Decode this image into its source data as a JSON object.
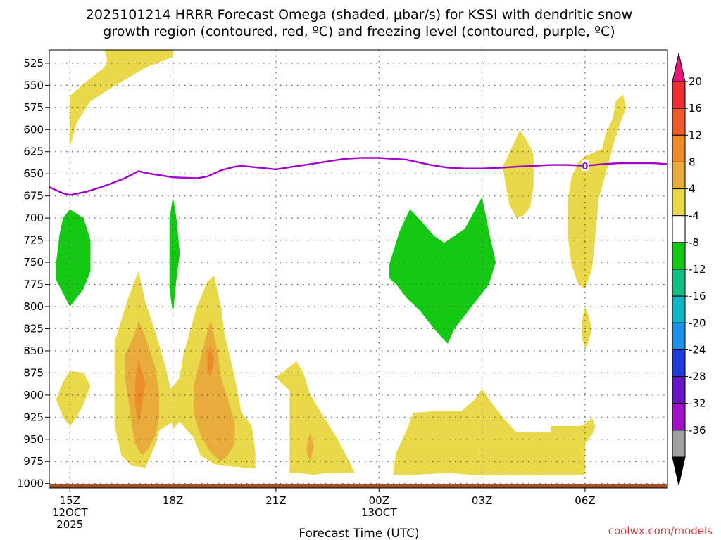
{
  "chart_data": {
    "type": "heatmap",
    "title_lines": [
      "2025101214 HRRR Forecast Omega (shaded, μbar/s) for KSSI with dendritic snow",
      "growth region (contoured, red, ºC) and freezing level (contoured, purple, ºC)"
    ],
    "xlabel": "Forecast Time (UTC)",
    "ylabel": "",
    "x_unit": "hours after 12Z 12 OCT 2025",
    "xlim": [
      14.4,
      32.4
    ],
    "y_scale": "pressure (hPa), inverted",
    "ylim": [
      1005,
      510
    ],
    "y_ticks": [
      525,
      550,
      575,
      600,
      625,
      650,
      675,
      700,
      725,
      750,
      775,
      800,
      825,
      850,
      875,
      900,
      925,
      950,
      975,
      1000
    ],
    "x_ticks": [
      {
        "x": 15,
        "lines": [
          "15Z",
          "12OCT",
          "2025"
        ]
      },
      {
        "x": 18,
        "lines": [
          "18Z"
        ]
      },
      {
        "x": 21,
        "lines": [
          "21Z"
        ]
      },
      {
        "x": 24,
        "lines": [
          "00Z",
          "13OCT"
        ]
      },
      {
        "x": 27,
        "lines": [
          "03Z"
        ]
      },
      {
        "x": 30,
        "lines": [
          "06Z"
        ]
      }
    ],
    "grid": true,
    "colorbar": {
      "labels": [
        "20",
        "16",
        "12",
        "8",
        "4",
        "-4",
        "-8",
        "-12",
        "-16",
        "-20",
        "-24",
        "-28",
        "-32",
        "-36"
      ],
      "colors": [
        "#e8157a",
        "#f03030",
        "#f05a28",
        "#ef8c2a",
        "#e8ac3c",
        "#e8d84a",
        "#ffffff",
        "#14c814",
        "#10c080",
        "#10b4c8",
        "#1e90e8",
        "#1e3cdc",
        "#6a14c8",
        "#a010c8",
        "#a0a0a0",
        "#000000"
      ]
    },
    "omega_regions": [
      {
        "level": "4 to 8",
        "color": "#e8d84a",
        "points": [
          [
            15.0,
            620
          ],
          [
            15.0,
            562
          ],
          [
            15.5,
            545
          ],
          [
            16.0,
            530
          ],
          [
            16.2,
            510
          ],
          [
            18.0,
            510
          ],
          [
            18.0,
            518
          ],
          [
            17.2,
            530
          ],
          [
            16.2,
            553
          ],
          [
            15.6,
            568
          ],
          [
            15.2,
            592
          ]
        ]
      },
      {
        "level": "4 to 8",
        "color": "#e8d84a",
        "points": [
          [
            16.0,
            510
          ],
          [
            16.2,
            510
          ],
          [
            16.1,
            522
          ]
        ]
      },
      {
        "level": "4 to 8",
        "color": "#e8d84a",
        "points": [
          [
            14.6,
            905
          ],
          [
            14.8,
            885
          ],
          [
            15.0,
            873
          ],
          [
            15.4,
            875
          ],
          [
            15.6,
            890
          ],
          [
            15.4,
            910
          ],
          [
            15.2,
            925
          ],
          [
            15.0,
            935
          ],
          [
            14.8,
            925
          ]
        ]
      },
      {
        "level": "4 to 8",
        "color": "#e8d84a",
        "points": [
          [
            16.3,
            840
          ],
          [
            16.7,
            790
          ],
          [
            17.0,
            760
          ],
          [
            17.2,
            795
          ],
          [
            17.5,
            830
          ],
          [
            17.8,
            870
          ],
          [
            18.0,
            905
          ],
          [
            18.0,
            930
          ],
          [
            17.6,
            940
          ],
          [
            17.5,
            955
          ],
          [
            17.2,
            982
          ],
          [
            16.8,
            980
          ],
          [
            16.5,
            968
          ],
          [
            16.3,
            935
          ]
        ]
      },
      {
        "level": "4 to 8",
        "color": "#e8d84a",
        "points": [
          [
            17.8,
            900
          ],
          [
            18.2,
            880
          ],
          [
            18.3,
            855
          ],
          [
            18.7,
            800
          ],
          [
            19.0,
            772
          ],
          [
            19.2,
            765
          ],
          [
            19.4,
            800
          ],
          [
            19.5,
            830
          ],
          [
            19.8,
            880
          ],
          [
            20.0,
            920
          ],
          [
            20.3,
            935
          ],
          [
            20.4,
            965
          ],
          [
            20.4,
            983
          ],
          [
            19.5,
            980
          ],
          [
            19.2,
            978
          ],
          [
            18.8,
            968
          ],
          [
            18.6,
            948
          ],
          [
            18.2,
            930
          ],
          [
            18.0,
            938
          ]
        ]
      },
      {
        "level": "4 to 8",
        "color": "#e8d84a",
        "points": [
          [
            21.0,
            880
          ],
          [
            21.6,
            862
          ],
          [
            21.8,
            875
          ],
          [
            22.0,
            900
          ],
          [
            22.4,
            925
          ],
          [
            22.8,
            950
          ],
          [
            23.0,
            965
          ],
          [
            23.3,
            988
          ],
          [
            22.5,
            988
          ],
          [
            22.1,
            990
          ],
          [
            21.6,
            988
          ],
          [
            21.4,
            988
          ],
          [
            21.4,
            945
          ],
          [
            21.4,
            895
          ]
        ]
      },
      {
        "level": "4 to 8",
        "color": "#e8d84a",
        "points": [
          [
            24.4,
            990
          ],
          [
            24.5,
            965
          ],
          [
            24.8,
            940
          ],
          [
            25.0,
            920
          ],
          [
            25.7,
            918
          ],
          [
            26.4,
            918
          ],
          [
            26.8,
            905
          ],
          [
            27.0,
            893
          ],
          [
            27.3,
            910
          ],
          [
            27.6,
            925
          ],
          [
            28.0,
            942
          ],
          [
            29.0,
            942
          ],
          [
            29.0,
            935
          ],
          [
            29.9,
            935
          ],
          [
            30.2,
            926
          ],
          [
            30.3,
            935
          ],
          [
            30.2,
            945
          ],
          [
            30.0,
            955
          ],
          [
            30.0,
            990
          ],
          [
            26.7,
            990
          ],
          [
            26.0,
            988
          ],
          [
            25.0,
            990
          ]
        ]
      },
      {
        "level": "4 to 8",
        "color": "#e8d84a",
        "points": [
          [
            27.6,
            642
          ],
          [
            27.9,
            618
          ],
          [
            28.1,
            601
          ],
          [
            28.3,
            612
          ],
          [
            28.5,
            628
          ],
          [
            28.5,
            665
          ],
          [
            28.4,
            688
          ],
          [
            28.2,
            697
          ],
          [
            28.0,
            700
          ],
          [
            27.8,
            685
          ],
          [
            27.7,
            665
          ]
        ]
      },
      {
        "level": "4 to 8",
        "color": "#e8d84a",
        "points": [
          [
            29.5,
            720
          ],
          [
            29.5,
            680
          ],
          [
            29.6,
            655
          ],
          [
            29.8,
            637
          ],
          [
            30.0,
            630
          ],
          [
            30.5,
            622
          ],
          [
            30.6,
            605
          ],
          [
            30.8,
            588
          ],
          [
            30.9,
            568
          ],
          [
            31.1,
            560
          ],
          [
            31.2,
            575
          ],
          [
            31.0,
            595
          ],
          [
            30.8,
            620
          ],
          [
            30.6,
            650
          ],
          [
            30.4,
            678
          ],
          [
            30.3,
            720
          ],
          [
            30.2,
            758
          ],
          [
            30.0,
            780
          ],
          [
            29.8,
            775
          ],
          [
            29.6,
            752
          ]
        ]
      },
      {
        "level": "4 to 8",
        "color": "#e8d84a",
        "points": [
          [
            29.9,
            818
          ],
          [
            30.0,
            800
          ],
          [
            30.1,
            810
          ],
          [
            30.2,
            825
          ],
          [
            30.1,
            840
          ],
          [
            30.0,
            848
          ],
          [
            29.9,
            833
          ]
        ]
      },
      {
        "level": "8 to 12",
        "color": "#e8ac3c",
        "points": [
          [
            16.6,
            855
          ],
          [
            16.9,
            830
          ],
          [
            17.0,
            815
          ],
          [
            17.2,
            835
          ],
          [
            17.5,
            870
          ],
          [
            17.6,
            900
          ],
          [
            17.6,
            925
          ],
          [
            17.5,
            945
          ],
          [
            17.3,
            960
          ],
          [
            17.1,
            968
          ],
          [
            16.9,
            955
          ],
          [
            16.8,
            935
          ],
          [
            16.7,
            905
          ],
          [
            16.6,
            880
          ]
        ]
      },
      {
        "level": "8 to 12",
        "color": "#e8ac3c",
        "points": [
          [
            18.6,
            920
          ],
          [
            18.6,
            890
          ],
          [
            18.8,
            860
          ],
          [
            19.0,
            828
          ],
          [
            19.1,
            815
          ],
          [
            19.3,
            850
          ],
          [
            19.4,
            880
          ],
          [
            19.6,
            905
          ],
          [
            19.8,
            930
          ],
          [
            19.8,
            955
          ],
          [
            19.6,
            968
          ],
          [
            19.4,
            975
          ],
          [
            19.1,
            965
          ],
          [
            18.8,
            945
          ]
        ]
      },
      {
        "level": "8 to 12",
        "color": "#e8ac3c",
        "points": [
          [
            21.9,
            955
          ],
          [
            22.0,
            942
          ],
          [
            22.1,
            958
          ],
          [
            22.0,
            975
          ],
          [
            21.9,
            965
          ]
        ]
      },
      {
        "level": "12 to 16",
        "color": "#ef8c2a",
        "points": [
          [
            16.9,
            885
          ],
          [
            17.0,
            860
          ],
          [
            17.2,
            887
          ],
          [
            17.1,
            910
          ],
          [
            17.0,
            935
          ],
          [
            16.9,
            910
          ]
        ]
      },
      {
        "level": "12 to 16",
        "color": "#ef8c2a",
        "points": [
          [
            19.0,
            855
          ],
          [
            19.1,
            843
          ],
          [
            19.2,
            860
          ],
          [
            19.1,
            880
          ],
          [
            19.0,
            873
          ]
        ]
      },
      {
        "level": "-4 to -8",
        "color": "#14c814",
        "points": [
          [
            14.6,
            750
          ],
          [
            14.7,
            718
          ],
          [
            14.8,
            700
          ],
          [
            15.0,
            690
          ],
          [
            15.4,
            700
          ],
          [
            15.6,
            725
          ],
          [
            15.6,
            760
          ],
          [
            15.4,
            780
          ],
          [
            15.2,
            790
          ],
          [
            15.0,
            800
          ],
          [
            14.8,
            785
          ],
          [
            14.6,
            770
          ]
        ]
      },
      {
        "level": "-4 to -8",
        "color": "#14c814",
        "points": [
          [
            17.9,
            720
          ],
          [
            17.9,
            700
          ],
          [
            18.0,
            676
          ],
          [
            18.1,
            700
          ],
          [
            18.2,
            740
          ],
          [
            18.1,
            770
          ],
          [
            18.0,
            808
          ],
          [
            17.9,
            780
          ],
          [
            17.9,
            750
          ]
        ]
      },
      {
        "level": "-4 to -8",
        "color": "#14c814",
        "points": [
          [
            24.3,
            752
          ],
          [
            24.6,
            715
          ],
          [
            24.9,
            690
          ],
          [
            25.2,
            702
          ],
          [
            25.6,
            720
          ],
          [
            25.9,
            728
          ],
          [
            26.5,
            712
          ],
          [
            27.0,
            676
          ],
          [
            27.2,
            715
          ],
          [
            27.4,
            750
          ],
          [
            27.2,
            775
          ],
          [
            26.6,
            805
          ],
          [
            26.2,
            825
          ],
          [
            26.0,
            842
          ],
          [
            25.6,
            825
          ],
          [
            25.2,
            805
          ],
          [
            24.8,
            790
          ],
          [
            24.5,
            775
          ],
          [
            24.3,
            768
          ]
        ]
      }
    ],
    "freezing_level": {
      "label": "0",
      "color": "#a000c8",
      "points": [
        [
          14.4,
          665
        ],
        [
          14.8,
          672
        ],
        [
          15.0,
          674
        ],
        [
          15.5,
          670
        ],
        [
          16.0,
          664
        ],
        [
          16.6,
          655
        ],
        [
          17.0,
          647
        ],
        [
          17.2,
          649
        ],
        [
          18.0,
          654
        ],
        [
          18.7,
          655
        ],
        [
          19.0,
          653
        ],
        [
          19.4,
          646
        ],
        [
          19.8,
          642
        ],
        [
          20.0,
          641
        ],
        [
          20.5,
          643
        ],
        [
          21.0,
          645
        ],
        [
          21.5,
          642
        ],
        [
          22.0,
          639
        ],
        [
          22.5,
          636
        ],
        [
          23.0,
          633
        ],
        [
          23.5,
          632
        ],
        [
          24.0,
          632
        ],
        [
          24.8,
          634
        ],
        [
          25.5,
          640
        ],
        [
          26.0,
          643
        ],
        [
          26.5,
          644
        ],
        [
          27.0,
          644
        ],
        [
          27.6,
          643
        ],
        [
          28.0,
          642
        ],
        [
          28.5,
          641
        ],
        [
          29.0,
          640
        ],
        [
          29.5,
          640
        ],
        [
          30.0,
          641
        ],
        [
          30.5,
          639
        ],
        [
          31.0,
          638
        ],
        [
          31.5,
          638
        ],
        [
          32.0,
          638
        ],
        [
          32.4,
          639
        ]
      ]
    },
    "ground_strip_color": "#a0522d"
  },
  "credit": "coolwx.com/models"
}
